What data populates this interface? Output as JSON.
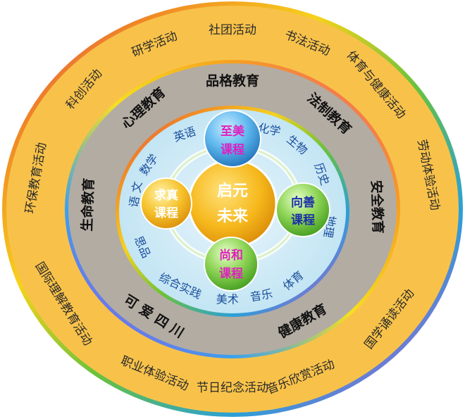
{
  "outer_ring": [
    {
      "text": "社团活动",
      "a": 0,
      "rot": 0
    },
    {
      "text": "书法活动",
      "a": 22,
      "rot": 22
    },
    {
      "text": "体育与健康活动",
      "a": 46,
      "rot": 50
    },
    {
      "text": "劳动体验活动",
      "a": 79,
      "rot": 79
    },
    {
      "text": "国学诵读活动",
      "a": 128,
      "rot": -52
    },
    {
      "text": "音乐欣赏活动",
      "a": 160,
      "rot": -22
    },
    {
      "text": "节日纪念活动",
      "a": 180,
      "rot": 0
    },
    {
      "text": "职业体验活动",
      "a": 203,
      "rot": 22
    },
    {
      "text": "国际理解教育活动",
      "a": 238,
      "rot": 58
    },
    {
      "text": "环保教育活动",
      "a": 280,
      "rot": -80
    },
    {
      "text": "科创活动",
      "a": 312,
      "rot": -50
    },
    {
      "text": "研学活动",
      "a": 337,
      "rot": -22
    }
  ],
  "middle_ring": [
    {
      "text": "品格教育",
      "a": 0,
      "rot": 0
    },
    {
      "text": "法制教育",
      "a": 42,
      "rot": 42
    },
    {
      "text": "安全教育",
      "a": 89,
      "rot": 88
    },
    {
      "text": "健康教育",
      "a": 151,
      "rot": -30
    },
    {
      "text": "可 爱 四 川",
      "a": 213,
      "rot": 32
    },
    {
      "text": "生命教育",
      "a": 272,
      "rot": -88
    },
    {
      "text": "心理教育",
      "a": 322,
      "rot": -42
    }
  ],
  "inner_ring": [
    {
      "text": "物理",
      "a": -3,
      "rot": 0
    },
    {
      "text": "化学",
      "a": 22,
      "rot": 10
    },
    {
      "text": "生物",
      "a": 41,
      "rot": 40
    },
    {
      "text": "历史",
      "a": 65,
      "rot": 70
    },
    {
      "text": "地理",
      "a": 100,
      "rot": 100
    },
    {
      "text": "体育",
      "a": 142,
      "rot": -40
    },
    {
      "text": "音乐",
      "a": 163,
      "rot": -10
    },
    {
      "text": "美术",
      "a": 183,
      "rot": 0
    },
    {
      "text": "综合实践",
      "a": 212,
      "rot": 25
    },
    {
      "text": "思品",
      "a": 246,
      "rot": 66
    },
    {
      "text": "语 文",
      "a": 281,
      "rot": -80
    },
    {
      "text": "数学",
      "a": 302,
      "rot": -55
    },
    {
      "text": "英语",
      "a": 331,
      "rot": -18
    }
  ],
  "center": {
    "line1": "启元",
    "line2": "未来"
  },
  "courses": [
    {
      "key": "top",
      "line1": "至美",
      "line2": "课程",
      "color": "#e020c0"
    },
    {
      "key": "right",
      "line1": "向善",
      "line2": "课程",
      "color": "#1b2fa8"
    },
    {
      "key": "bottom",
      "line1": "尚和",
      "line2": "课程",
      "color": "#e020c0"
    },
    {
      "key": "left",
      "line1": "求真",
      "line2": "课程",
      "color": "#ffffff"
    }
  ]
}
